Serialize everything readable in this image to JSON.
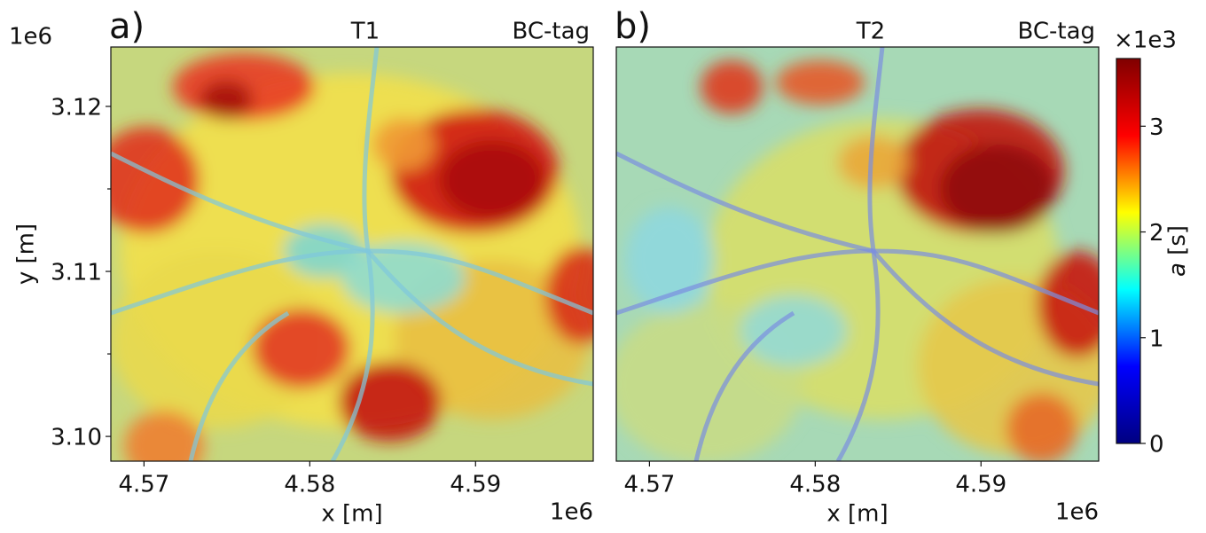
{
  "chart_data": [
    {
      "type": "heatmap",
      "panel_label": "a)",
      "title": "T1",
      "annotation": "BC-tag",
      "xlabel": "x [m]",
      "ylabel": "y [m]",
      "x_offset": "1e6",
      "y_offset": "1e6",
      "xlim": [
        4.568,
        4.5971
      ],
      "ylim": [
        3.0985,
        3.1236
      ],
      "xticks": [
        4.57,
        4.58,
        4.59
      ],
      "yticks": [
        3.12,
        3.11,
        {
          "value": 3.1,
          "label": "3.10"
        }
      ],
      "yminorticks": [
        3.115,
        3.105
      ]
    },
    {
      "type": "heatmap",
      "panel_label": "b)",
      "title": "T2",
      "annotation": "BC-tag",
      "xlabel": "x [m]",
      "x_offset": "1e6",
      "xlim": [
        4.568,
        4.5971
      ],
      "ylim": [
        3.0985,
        3.1236
      ],
      "xticks": [
        4.57,
        4.58,
        4.59
      ]
    }
  ],
  "colorbar": {
    "label_var": "a",
    "label_unit": "[s]",
    "offset": "×1e3",
    "colormap": "jet",
    "colors": [
      "#000080",
      "#0000ff",
      "#00ffff",
      "#ffff00",
      "#ff0000",
      "#800000"
    ],
    "clim": [
      0,
      3.64
    ],
    "ticks": [
      0,
      1,
      2,
      3
    ]
  }
}
